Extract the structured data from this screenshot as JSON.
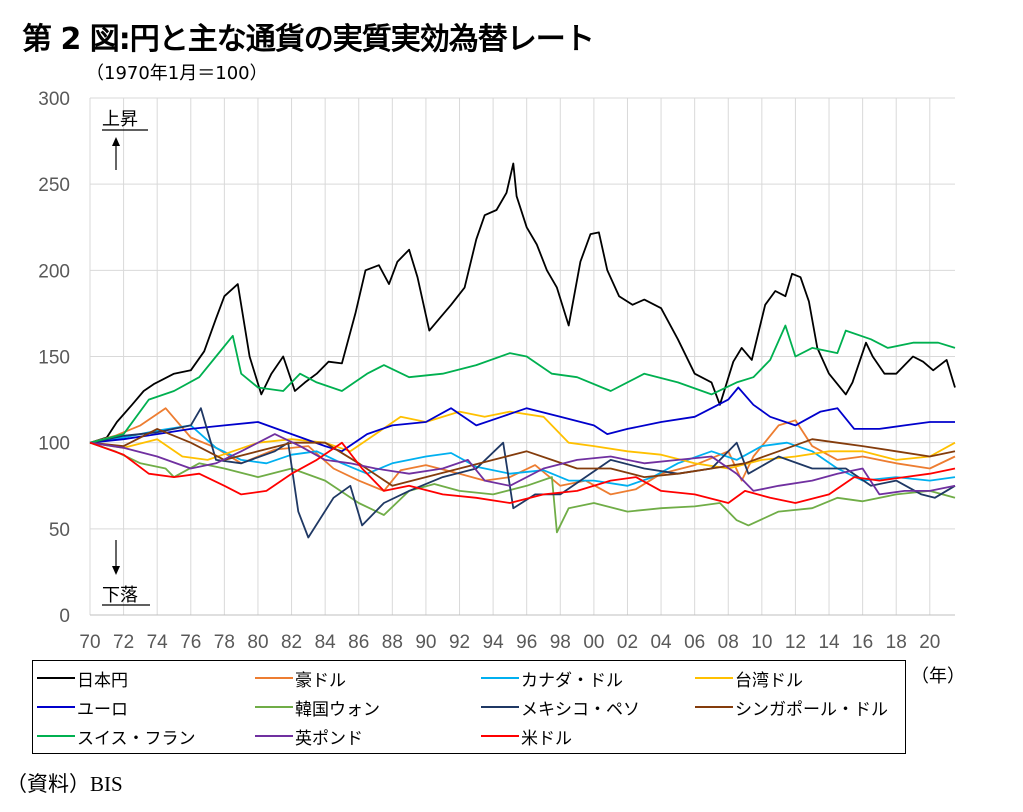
{
  "chart_data": {
    "type": "line",
    "title": "第 2 図:円と主な通貨の実質実効為替レート",
    "ylabel": "（1970年1月＝100）",
    "xlabel": "（年）",
    "ylim": [
      0,
      300
    ],
    "yticks": [
      0,
      50,
      100,
      150,
      200,
      250,
      300
    ],
    "xlim": [
      1970,
      2021.5
    ],
    "xtick_labels": [
      "70",
      "72",
      "74",
      "76",
      "78",
      "80",
      "82",
      "84",
      "86",
      "88",
      "90",
      "92",
      "94",
      "96",
      "98",
      "00",
      "02",
      "04",
      "06",
      "08",
      "10",
      "12",
      "14",
      "16",
      "18",
      "20"
    ],
    "up_label": "上昇",
    "down_label": "下落",
    "series": [
      {
        "name": "日本円",
        "color": "#000000",
        "x": [
          1970,
          1971,
          1971.6,
          1972.5,
          1973.2,
          1973.8,
          1975,
          1976,
          1976.8,
          1977.5,
          1978,
          1978.8,
          1979.5,
          1980.2,
          1980.8,
          1981.5,
          1982.2,
          1982.8,
          1983.5,
          1984.2,
          1985,
          1985.8,
          1986.4,
          1987.2,
          1987.8,
          1988.3,
          1989,
          1989.5,
          1990.2,
          1990.8,
          1991.5,
          1992.3,
          1993,
          1993.5,
          1994.2,
          1994.8,
          1995.2,
          1995.4,
          1996,
          1996.6,
          1997.2,
          1997.8,
          1998.5,
          1999.2,
          1999.8,
          2000.3,
          2000.8,
          2001.5,
          2002.3,
          2003,
          2004,
          2005,
          2006,
          2007,
          2007.5,
          2008.3,
          2008.8,
          2009.4,
          2010.2,
          2010.8,
          2011.4,
          2011.8,
          2012.3,
          2012.8,
          2013.3,
          2014,
          2015,
          2015.4,
          2016.2,
          2016.6,
          2017.3,
          2018,
          2019,
          2019.6,
          2020.2,
          2021,
          2021.5
        ],
        "values": [
          100,
          103,
          112,
          122,
          130,
          134,
          140,
          142,
          153,
          172,
          185,
          192,
          150,
          128,
          140,
          150,
          130,
          135,
          140,
          147,
          146,
          175,
          200,
          203,
          192,
          205,
          212,
          196,
          165,
          172,
          180,
          190,
          218,
          232,
          235,
          245,
          262,
          243,
          225,
          215,
          200,
          190,
          168,
          205,
          221,
          222,
          200,
          185,
          180,
          183,
          178,
          160,
          140,
          135,
          122,
          147,
          155,
          148,
          180,
          188,
          185,
          198,
          196,
          182,
          155,
          140,
          128,
          135,
          158,
          150,
          140,
          140,
          150,
          147,
          142,
          148,
          132
        ]
      },
      {
        "name": "豪ドル",
        "color": "#ED7D31",
        "x": [
          1970,
          1971.5,
          1973,
          1974.5,
          1976,
          1977.5,
          1979,
          1981,
          1983,
          1984.5,
          1986,
          1987.5,
          1988.5,
          1990,
          1992,
          1993.5,
          1995,
          1996.5,
          1998,
          1999.5,
          2001,
          2002.5,
          2004,
          2006,
          2008,
          2008.8,
          2009.5,
          2011,
          2012,
          2013,
          2014.5,
          2016,
          2018,
          2020,
          2021.5
        ],
        "values": [
          100,
          104,
          110,
          120,
          103,
          97,
          88,
          96,
          98,
          85,
          78,
          72,
          84,
          87,
          82,
          78,
          80,
          87,
          75,
          78,
          70,
          73,
          82,
          87,
          95,
          78,
          92,
          110,
          113,
          98,
          90,
          92,
          88,
          85,
          92
        ]
      },
      {
        "name": "カナダ・ドル",
        "color": "#00B0F0",
        "x": [
          1970,
          1972,
          1974,
          1976,
          1977.5,
          1979,
          1980.5,
          1982,
          1983.5,
          1985,
          1986.5,
          1988,
          1990,
          1991.5,
          1993,
          1995,
          1997,
          1998.5,
          2000,
          2002,
          2003.5,
          2005,
          2007,
          2008.5,
          2010,
          2011.5,
          2013,
          2014.5,
          2016,
          2018,
          2020,
          2021.5
        ],
        "values": [
          100,
          103,
          107,
          110,
          97,
          90,
          88,
          93,
          95,
          88,
          82,
          88,
          92,
          94,
          86,
          82,
          84,
          78,
          78,
          75,
          80,
          88,
          95,
          90,
          98,
          100,
          95,
          85,
          78,
          80,
          78,
          80
        ]
      },
      {
        "name": "台湾ドル",
        "color": "#FFC000",
        "x": [
          1970,
          1972,
          1974,
          1975.5,
          1977,
          1978.5,
          1980,
          1982,
          1984,
          1985.5,
          1987,
          1988.5,
          1990,
          1992,
          1993.5,
          1995,
          1997,
          1998.5,
          2000,
          2002,
          2004,
          2006,
          2008,
          2010,
          2012,
          2014,
          2016,
          2018,
          2020,
          2021.5
        ],
        "values": [
          100,
          97,
          102,
          92,
          90,
          95,
          100,
          102,
          100,
          95,
          105,
          115,
          112,
          118,
          115,
          118,
          115,
          100,
          98,
          95,
          93,
          88,
          85,
          90,
          92,
          95,
          95,
          90,
          92,
          100
        ]
      },
      {
        "name": "ユーロ",
        "color": "#0000CC",
        "x": [
          1970,
          1972,
          1974,
          1976,
          1978,
          1980,
          1982,
          1984,
          1985,
          1986.5,
          1988,
          1990,
          1991.5,
          1993,
          1994.5,
          1996,
          1998,
          2000,
          2000.8,
          2002,
          2004,
          2006,
          2008,
          2008.6,
          2009.5,
          2010.5,
          2012,
          2013.5,
          2014.5,
          2015.5,
          2017,
          2018.5,
          2020,
          2021.5
        ],
        "values": [
          100,
          102,
          105,
          108,
          110,
          112,
          105,
          98,
          95,
          105,
          110,
          112,
          120,
          110,
          115,
          120,
          115,
          110,
          105,
          108,
          112,
          115,
          125,
          132,
          122,
          115,
          110,
          118,
          120,
          108,
          108,
          110,
          112,
          112
        ]
      },
      {
        "name": "韓国ウォン",
        "color": "#70AD47",
        "x": [
          1970,
          1971.5,
          1973,
          1974.5,
          1975,
          1976.5,
          1978,
          1980,
          1982,
          1984,
          1986,
          1987.5,
          1989,
          1990.5,
          1992,
          1994,
          1996,
          1997.5,
          1997.8,
          1998.5,
          2000,
          2002,
          2004,
          2006,
          2007.5,
          2008.5,
          2009.2,
          2011,
          2013,
          2014.5,
          2016,
          2018,
          2020,
          2021.5
        ],
        "values": [
          100,
          95,
          88,
          85,
          80,
          88,
          85,
          80,
          85,
          78,
          65,
          58,
          72,
          76,
          72,
          70,
          75,
          80,
          48,
          62,
          65,
          60,
          62,
          63,
          65,
          55,
          52,
          60,
          62,
          68,
          66,
          70,
          72,
          68
        ]
      },
      {
        "name": "メキシコ・ペソ",
        "color": "#1F3864",
        "x": [
          1970,
          1972,
          1974,
          1976,
          1976.6,
          1977.5,
          1979,
          1981,
          1981.8,
          1982.4,
          1983,
          1984.5,
          1985.5,
          1986.2,
          1987.5,
          1989,
          1991,
          1993,
          1994.6,
          1995.2,
          1996.5,
          1998,
          1999.5,
          2001,
          2003,
          2005,
          2007,
          2008.5,
          2009.2,
          2011,
          2013,
          2015,
          2016.5,
          2018,
          2019.5,
          2020.3,
          2021.5
        ],
        "values": [
          100,
          104,
          106,
          110,
          120,
          90,
          88,
          95,
          100,
          60,
          45,
          68,
          75,
          52,
          65,
          72,
          80,
          85,
          100,
          62,
          70,
          70,
          80,
          90,
          85,
          82,
          85,
          100,
          82,
          92,
          85,
          85,
          75,
          78,
          70,
          68,
          75
        ]
      },
      {
        "name": "シンガポール・ドル",
        "color": "#843C0C",
        "x": [
          1970,
          1972,
          1974,
          1976,
          1978,
          1980,
          1982,
          1984,
          1986,
          1988,
          1990,
          1992,
          1994,
          1996,
          1997.5,
          1999,
          2001,
          2003,
          2005,
          2007,
          2009,
          2011,
          2013,
          2014.5,
          2016,
          2018,
          2020,
          2021.5
        ],
        "values": [
          100,
          98,
          108,
          100,
          90,
          95,
          100,
          100,
          88,
          75,
          80,
          85,
          90,
          95,
          90,
          85,
          85,
          80,
          82,
          85,
          88,
          95,
          102,
          100,
          98,
          95,
          92,
          95
        ]
      },
      {
        "name": "スイス・フラン",
        "color": "#00B050",
        "x": [
          1970,
          1972,
          1973.5,
          1975,
          1976.5,
          1977.5,
          1978.5,
          1979,
          1980,
          1981.5,
          1982.5,
          1983.5,
          1985,
          1986.5,
          1987.5,
          1989,
          1991,
          1993,
          1995,
          1996,
          1997.5,
          1999,
          2001,
          2003,
          2005,
          2007,
          2008.5,
          2009.5,
          2010.5,
          2011.4,
          2012,
          2013,
          2014.5,
          2015,
          2016.5,
          2017.5,
          2019,
          2020.5,
          2021.5
        ],
        "values": [
          100,
          105,
          125,
          130,
          138,
          150,
          162,
          140,
          132,
          130,
          140,
          135,
          130,
          140,
          145,
          138,
          140,
          145,
          152,
          150,
          140,
          138,
          130,
          140,
          135,
          128,
          135,
          138,
          148,
          168,
          150,
          155,
          152,
          165,
          160,
          155,
          158,
          158,
          155
        ]
      },
      {
        "name": "英ポンド",
        "color": "#7030A0",
        "x": [
          1970,
          1972,
          1974,
          1976,
          1977.5,
          1979,
          1981,
          1982.5,
          1984,
          1985.5,
          1987,
          1989,
          1991,
          1992.5,
          1993.5,
          1995,
          1997,
          1999,
          2001,
          2003,
          2005,
          2007,
          2008.5,
          2009.5,
          2011,
          2013,
          2014.5,
          2016,
          2017,
          2018.5,
          2020,
          2021.5
        ],
        "values": [
          100,
          97,
          92,
          85,
          88,
          95,
          105,
          98,
          90,
          88,
          85,
          82,
          85,
          90,
          78,
          75,
          85,
          90,
          92,
          88,
          90,
          92,
          82,
          72,
          75,
          78,
          82,
          85,
          70,
          72,
          72,
          75
        ]
      },
      {
        "name": "米ドル",
        "color": "#FF0000",
        "x": [
          1970,
          1972,
          1973.5,
          1975,
          1976.5,
          1978,
          1979,
          1980.5,
          1982,
          1983.5,
          1985,
          1986.2,
          1987.5,
          1989,
          1991,
          1993,
          1995,
          1997,
          1999,
          2001,
          2002.5,
          2004,
          2006,
          2008,
          2009,
          2010.5,
          2012,
          2014,
          2015.5,
          2017,
          2018.5,
          2020,
          2021.5
        ],
        "values": [
          100,
          93,
          82,
          80,
          82,
          75,
          70,
          72,
          82,
          90,
          100,
          85,
          72,
          75,
          70,
          68,
          65,
          70,
          72,
          78,
          80,
          72,
          70,
          65,
          72,
          68,
          65,
          70,
          80,
          78,
          80,
          82,
          85
        ]
      }
    ]
  },
  "source_label": "（資料）BIS"
}
